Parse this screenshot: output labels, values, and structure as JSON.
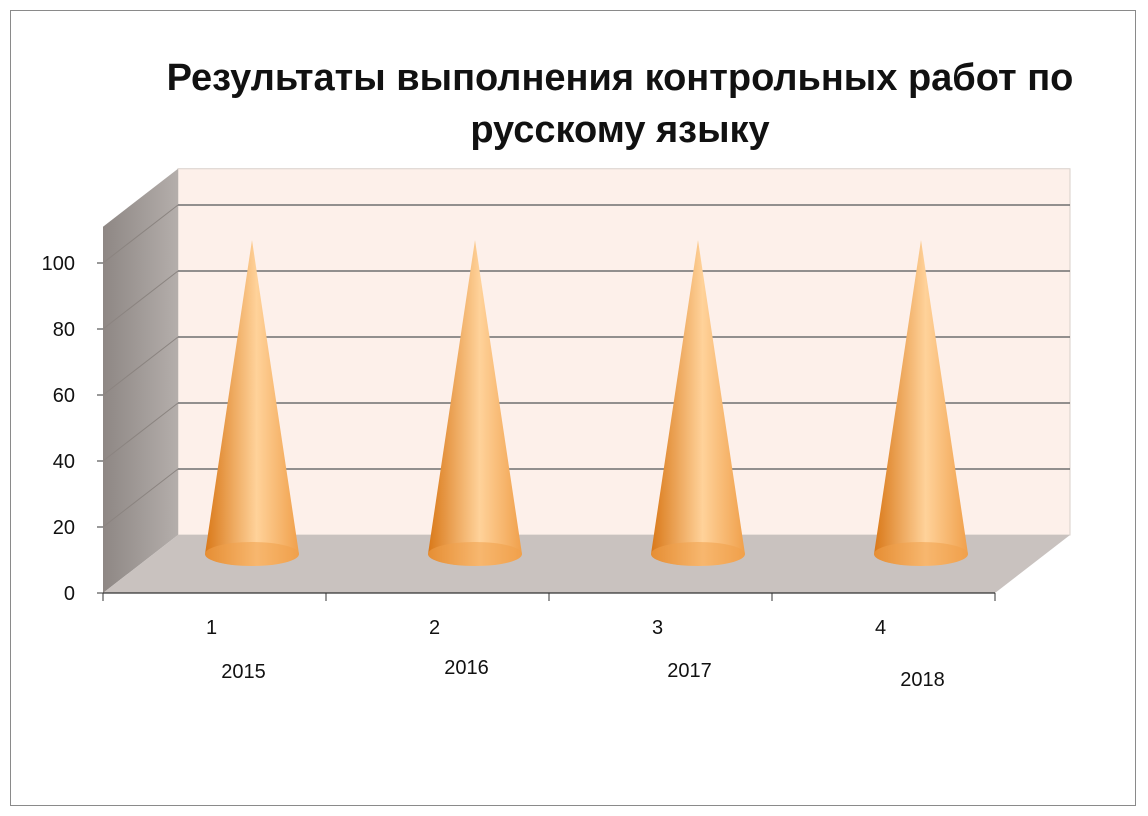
{
  "chart_data": {
    "type": "bar",
    "style": "3d-cone",
    "title": "Результаты выполнения контрольных работ по русскому языку",
    "categories": [
      "1",
      "2",
      "3",
      "4"
    ],
    "category_sublabels": [
      "2015",
      "2016",
      "2017",
      "2018"
    ],
    "series": [
      {
        "values": [
          100,
          100,
          100,
          100
        ]
      }
    ],
    "ylim": [
      0,
      100
    ],
    "yticks": [
      0,
      20,
      40,
      60,
      80,
      100
    ],
    "xlabel": "",
    "ylabel": "",
    "grid": true,
    "legend": "none",
    "colors": {
      "cone_base": "#f0a04b",
      "cone_light": "#ffd29a",
      "cone_dark": "#d97818",
      "back_wall": "#fdf0ea",
      "side_wall": "#a8a19d",
      "floor": "#c9c2bf",
      "gridline": "#6f6f6f"
    }
  }
}
